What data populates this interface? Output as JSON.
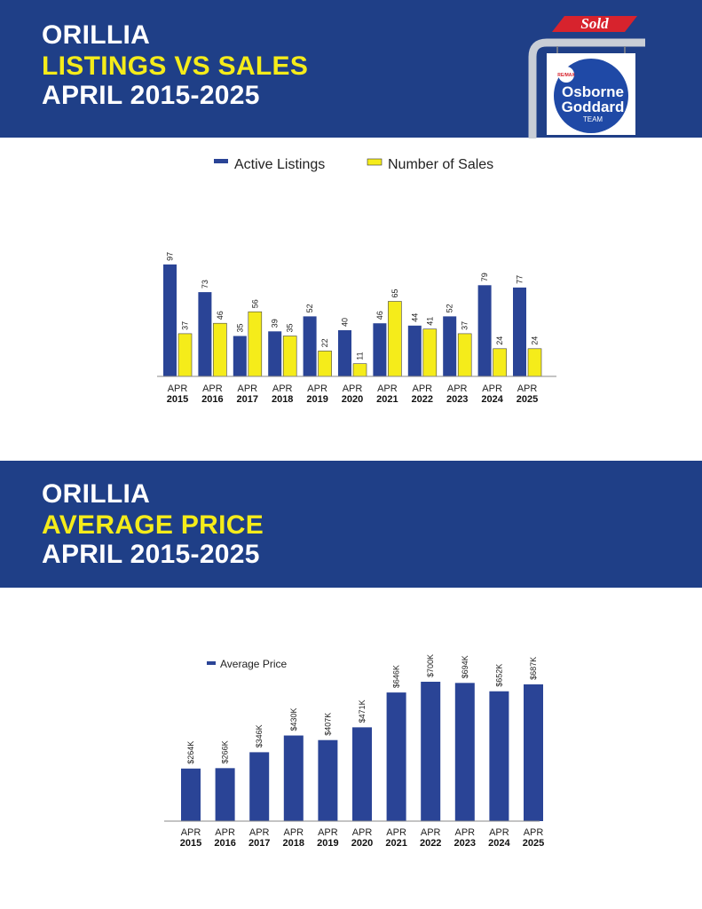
{
  "charts": [
    {
      "title_city": "ORILLIA",
      "title_main": "LISTINGS VS SALES",
      "title_period": "APRIL 2015-2025"
    },
    {
      "title_city": "ORILLIA",
      "title_main": "AVERAGE PRICE",
      "title_period": "APRIL 2015-2025"
    }
  ],
  "logo": {
    "sold_text": "Sold",
    "brand": "RE/MAX",
    "line1": "Osborne",
    "line2": "Goddard",
    "line3": "TEAM"
  },
  "colors": {
    "banner": "#1f3f87",
    "bar_blue": "#2a4496",
    "bar_yellow": "#f5ec1a",
    "title_yellow": "#f5ec1a",
    "sold_red": "#d7232d"
  },
  "chart_data": [
    {
      "type": "bar",
      "title": "LISTINGS VS SALES",
      "categories": [
        {
          "month": "APR",
          "year": "2015"
        },
        {
          "month": "APR",
          "year": "2016"
        },
        {
          "month": "APR",
          "year": "2017"
        },
        {
          "month": "APR",
          "year": "2018"
        },
        {
          "month": "APR",
          "year": "2019"
        },
        {
          "month": "APR",
          "year": "2020"
        },
        {
          "month": "APR",
          "year": "2021"
        },
        {
          "month": "APR",
          "year": "2022"
        },
        {
          "month": "APR",
          "year": "2023"
        },
        {
          "month": "APR",
          "year": "2024"
        },
        {
          "month": "APR",
          "year": "2025"
        }
      ],
      "series": [
        {
          "name": "Active Listings",
          "color": "#2a4496",
          "values": [
            97,
            73,
            35,
            39,
            52,
            40,
            46,
            44,
            52,
            79,
            77
          ]
        },
        {
          "name": "Number of Sales",
          "color": "#f5ec1a",
          "values": [
            37,
            46,
            56,
            35,
            22,
            11,
            65,
            41,
            37,
            24,
            24
          ]
        }
      ],
      "legend": "top-center",
      "grid": false,
      "ylim": [
        0,
        100
      ]
    },
    {
      "type": "bar",
      "title": "AVERAGE PRICE",
      "categories": [
        {
          "month": "APR",
          "year": "2015"
        },
        {
          "month": "APR",
          "year": "2016"
        },
        {
          "month": "APR",
          "year": "2017"
        },
        {
          "month": "APR",
          "year": "2018"
        },
        {
          "month": "APR",
          "year": "2019"
        },
        {
          "month": "APR",
          "year": "2020"
        },
        {
          "month": "APR",
          "year": "2021"
        },
        {
          "month": "APR",
          "year": "2022"
        },
        {
          "month": "APR",
          "year": "2023"
        },
        {
          "month": "APR",
          "year": "2024"
        },
        {
          "month": "APR",
          "year": "2025"
        }
      ],
      "series": [
        {
          "name": "Average Price",
          "color": "#2a4496",
          "values": [
            264,
            266,
            346,
            430,
            407,
            471,
            646,
            700,
            694,
            652,
            687
          ],
          "labels": [
            "$264K",
            "$266K",
            "$346K",
            "$430K",
            "$407K",
            "$471K",
            "$646K",
            "$700K",
            "$694K",
            "$652K",
            "$687K"
          ]
        }
      ],
      "legend": "top-left",
      "grid": false,
      "ylim": [
        0,
        700
      ]
    }
  ]
}
